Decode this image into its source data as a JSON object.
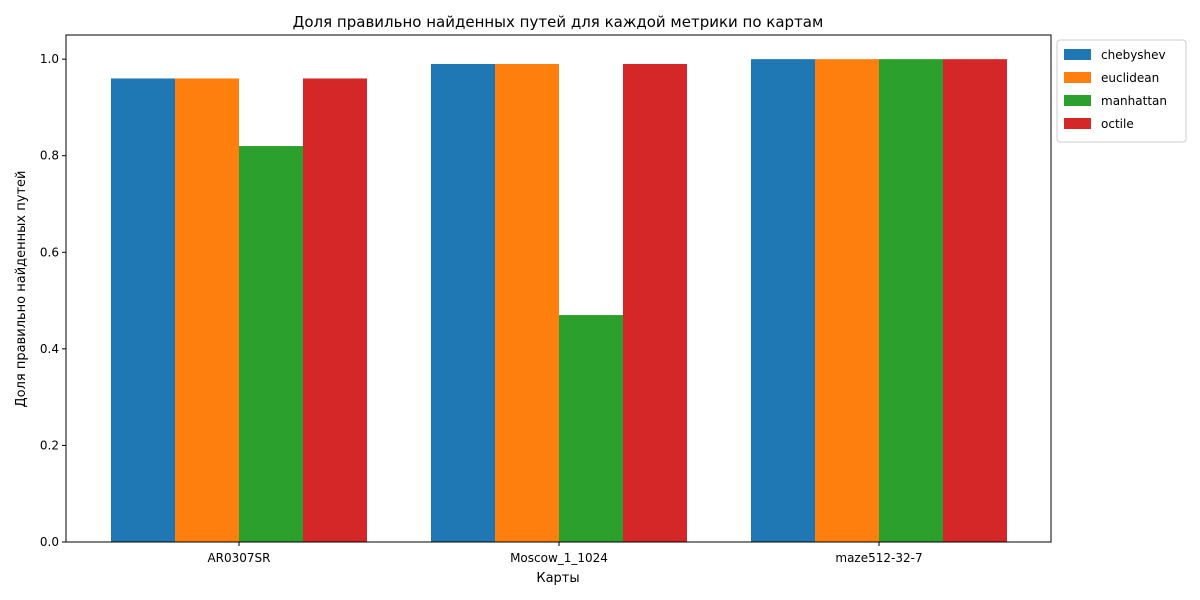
{
  "chart_data": {
    "type": "bar",
    "title": "Доля правильно найденных путей для каждой метрики по картам",
    "xlabel": "Карты",
    "ylabel": "Доля правильно найденных путей",
    "categories": [
      "AR0307SR",
      "Moscow_1_1024",
      "maze512-32-7"
    ],
    "ylim": [
      0,
      1.05
    ],
    "yticks": [
      "0.0",
      "0.2",
      "0.4",
      "0.6",
      "0.8",
      "1.0"
    ],
    "grid": false,
    "legend_position": "outside-top-right",
    "series": [
      {
        "name": "chebyshev",
        "color": "#1f77b4",
        "values": [
          0.96,
          0.99,
          1.0
        ]
      },
      {
        "name": "euclidean",
        "color": "#ff7f0e",
        "values": [
          0.96,
          0.99,
          1.0
        ]
      },
      {
        "name": "manhattan",
        "color": "#2ca02c",
        "values": [
          0.82,
          0.47,
          1.0
        ]
      },
      {
        "name": "octile",
        "color": "#d62728",
        "values": [
          0.96,
          0.99,
          1.0
        ]
      }
    ]
  }
}
